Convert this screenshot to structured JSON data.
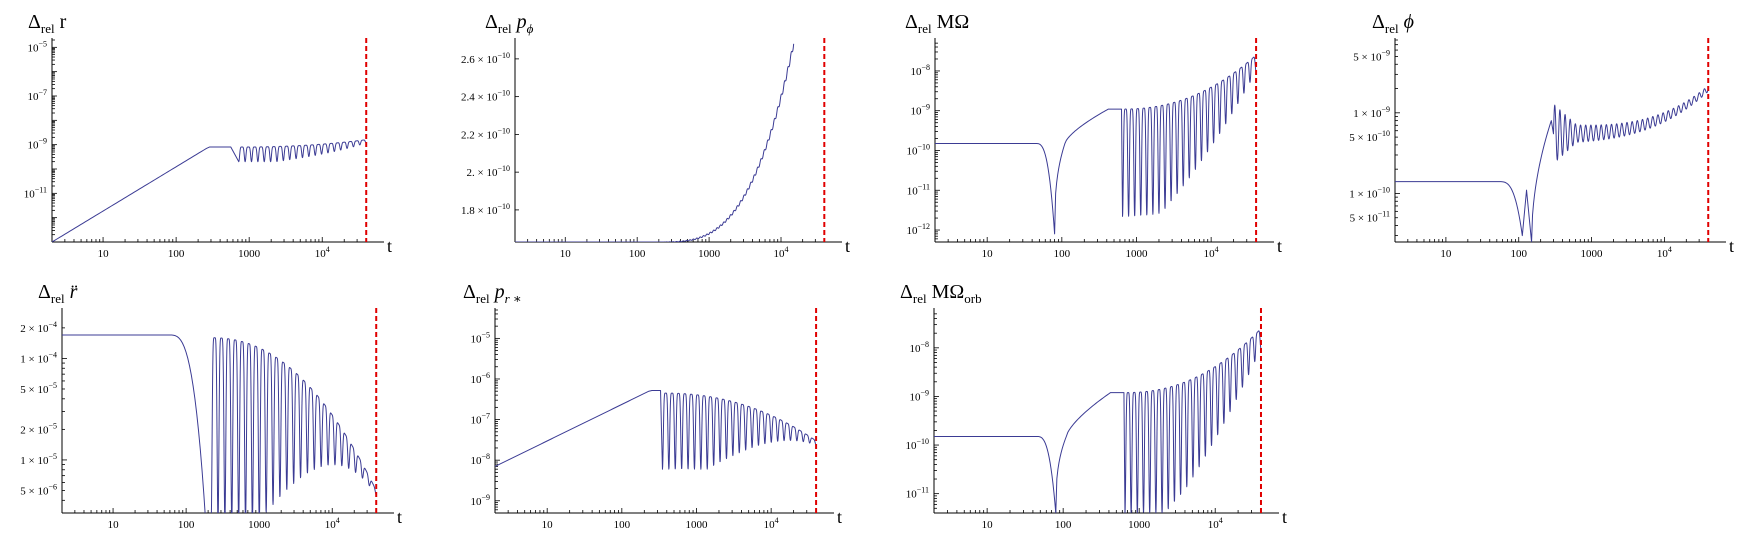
{
  "chart_data": [
    {
      "type": "line",
      "title": {
        "pre": "Δ",
        "sub": "rel",
        "post": " r",
        "italic": false
      },
      "xlabel": "t",
      "xscale": "log",
      "yscale": "log",
      "xlim": [
        2,
        48000
      ],
      "ylim": [
        1e-13,
        2e-05
      ],
      "xticks": [
        {
          "label": "10",
          "value": 10
        },
        {
          "label": "100",
          "value": 100
        },
        {
          "label": "1000",
          "value": 1000
        },
        {
          "label": "10",
          "sup": "4",
          "value": 10000
        }
      ],
      "yticks": [
        {
          "base": "10",
          "sup": "−5",
          "value": 1e-05
        },
        {
          "base": "10",
          "sup": "−7",
          "value": 1e-07
        },
        {
          "base": "10",
          "sup": "−9",
          "value": 1e-09
        },
        {
          "base": "10",
          "sup": "−11",
          "value": 1e-11
        }
      ],
      "vline": 40000,
      "series": [
        {
          "model": "rise",
          "start": [
            2,
            1e-13
          ],
          "end": [
            260,
            7e-10
          ],
          "plateau": 8e-10,
          "plateau_end": 560,
          "osc_start": 720,
          "osc_peak": 8e-10,
          "osc_dip": 2e-10,
          "osc_end_value": 1.6e-09,
          "osc_end": 40000,
          "dip_exp": 1.0,
          "periods": 20
        }
      ],
      "colors": {
        "line": "#3b3b94",
        "marker": "#e00000"
      }
    },
    {
      "type": "line",
      "title": {
        "pre": "Δ",
        "sub": "rel",
        "post": " p",
        "post_sub": "ϕ",
        "italic": true
      },
      "xlabel": "t",
      "xscale": "log",
      "yscale": "linear",
      "xlim": [
        2,
        48000
      ],
      "ylim": [
        1.63e-10,
        2.7e-10
      ],
      "xticks": [
        {
          "label": "10",
          "value": 10
        },
        {
          "label": "100",
          "value": 100
        },
        {
          "label": "1000",
          "value": 1000
        },
        {
          "label": "10",
          "sup": "4",
          "value": 10000
        }
      ],
      "yticks": [
        {
          "base": "2.6 × 10",
          "sup": "−10",
          "value": 2.6e-10
        },
        {
          "base": "2.4 × 10",
          "sup": "−10",
          "value": 2.4e-10
        },
        {
          "base": "2.2 × 10",
          "sup": "−10",
          "value": 2.2e-10
        },
        {
          "base": "2. × 10",
          "sup": "−10",
          "value": 2e-10
        },
        {
          "base": "1.8 × 10",
          "sup": "−10",
          "value": 1.8e-10
        }
      ],
      "vline": 40000,
      "series": [
        {
          "model": "growth",
          "start": [
            2,
            1.63e-10
          ],
          "flat_end": 200,
          "end": [
            15000,
            2.68e-10
          ],
          "power": 3.2,
          "wiggle": 0.006,
          "periods": 40
        }
      ],
      "colors": {
        "line": "#3b3b94",
        "marker": "#e00000"
      }
    },
    {
      "type": "line",
      "title": {
        "pre": "Δ",
        "sub": "rel",
        "post": " MΩ",
        "italic": false
      },
      "xlabel": "t",
      "xscale": "log",
      "yscale": "log",
      "xlim": [
        2,
        48000
      ],
      "ylim": [
        5e-13,
        6e-08
      ],
      "xticks": [
        {
          "label": "10",
          "value": 10
        },
        {
          "label": "100",
          "value": 100
        },
        {
          "label": "1000",
          "value": 1000
        },
        {
          "label": "10",
          "sup": "4",
          "value": 10000
        }
      ],
      "yticks": [
        {
          "base": "10",
          "sup": "−8",
          "value": 1e-08
        },
        {
          "base": "10",
          "sup": "−9",
          "value": 1e-09
        },
        {
          "base": "10",
          "sup": "−10",
          "value": 1e-10
        },
        {
          "base": "10",
          "sup": "−11",
          "value": 1e-11
        },
        {
          "base": "10",
          "sup": "−12",
          "value": 1e-12
        }
      ],
      "vline": 40000,
      "series": [
        {
          "model": "dip",
          "flat": 1.5e-10,
          "flat_end": 45,
          "dip_t": 80,
          "dip_value": 8e-13,
          "recover": [
            110,
            1.5e-10
          ],
          "plateau": 1.1e-09,
          "plateau_start": 420,
          "plateau_end": 630,
          "osc_start": 650,
          "osc_peak": 1.1e-09,
          "osc_dip": 2e-12,
          "osc_end_value": 2.5e-08,
          "osc_end": 40000,
          "dip_exp": 1.0,
          "periods": 22
        }
      ],
      "colors": {
        "line": "#3b3b94",
        "marker": "#e00000"
      }
    },
    {
      "type": "line",
      "title": {
        "pre": "Δ",
        "sub": "rel",
        "post": " ϕ",
        "italic": true
      },
      "xlabel": "t",
      "xscale": "log",
      "yscale": "log",
      "xlim": [
        2,
        48000
      ],
      "ylim": [
        2.5e-11,
        8e-09
      ],
      "xticks": [
        {
          "label": "10",
          "value": 10
        },
        {
          "label": "100",
          "value": 100
        },
        {
          "label": "1000",
          "value": 1000
        },
        {
          "label": "10",
          "sup": "4",
          "value": 10000
        }
      ],
      "yticks": [
        {
          "base": "5 × 10",
          "sup": "−9",
          "value": 5e-09
        },
        {
          "base": "1 × 10",
          "sup": "−9",
          "value": 1e-09
        },
        {
          "base": "5 × 10",
          "sup": "−10",
          "value": 5e-10
        },
        {
          "base": "1 × 10",
          "sup": "−10",
          "value": 1e-10
        },
        {
          "base": "5 × 10",
          "sup": "−11",
          "value": 5e-11
        }
      ],
      "vline": 40000,
      "series": [
        {
          "model": "phi",
          "flat": 1.4e-10,
          "flat_end": 55,
          "dip1_t": 112,
          "dip1_value": 3e-11,
          "bump": [
            128,
            1.1e-10
          ],
          "dip2_t": 150,
          "dip2_value": 2.5e-11,
          "rise_peak": [
            280,
            8e-10
          ],
          "osc_start": 300,
          "osc_mid": 5.5e-10,
          "osc_amp": 0.12,
          "osc_end_value": 2e-09,
          "osc_end": 40000,
          "periods": 30
        }
      ],
      "colors": {
        "line": "#3b3b94",
        "marker": "#e00000"
      }
    },
    {
      "type": "line",
      "title": {
        "pre": "Δ",
        "sub": "rel",
        "post": " r̈",
        "italic": true
      },
      "xlabel": "t",
      "xscale": "log",
      "yscale": "log",
      "xlim": [
        2,
        48000
      ],
      "ylim": [
        3e-06,
        0.0003
      ],
      "xticks": [
        {
          "label": "10",
          "value": 10
        },
        {
          "label": "100",
          "value": 100
        },
        {
          "label": "1000",
          "value": 1000
        },
        {
          "label": "10",
          "sup": "4",
          "value": 10000
        }
      ],
      "yticks": [
        {
          "base": "2 × 10",
          "sup": "−4",
          "value": 0.0002
        },
        {
          "base": "1 × 10",
          "sup": "−4",
          "value": 0.0001
        },
        {
          "base": "5 × 10",
          "sup": "−5",
          "value": 5e-05
        },
        {
          "base": "2 × 10",
          "sup": "−5",
          "value": 2e-05
        },
        {
          "base": "1 × 10",
          "sup": "−5",
          "value": 1e-05
        },
        {
          "base": "5 × 10",
          "sup": "−6",
          "value": 5e-06
        }
      ],
      "vline": 40000,
      "series": [
        {
          "model": "rdd",
          "flat": 0.00017,
          "flat_end": 60,
          "dip_t": 185,
          "dip_value": 2.5e-06,
          "osc_start": 220,
          "osc_peak": 0.00016,
          "osc_dip": 2.5e-06,
          "osc_end_value": 5e-06,
          "osc_end": 40000,
          "periods": 24
        }
      ],
      "colors": {
        "line": "#3b3b94",
        "marker": "#e00000"
      }
    },
    {
      "type": "line",
      "title": {
        "pre": "Δ",
        "sub": "rel",
        "post": " p",
        "post_sub": "r ∗",
        "italic": true
      },
      "xlabel": "t",
      "xscale": "log",
      "yscale": "log",
      "xlim": [
        2,
        48000
      ],
      "ylim": [
        5e-10,
        5e-05
      ],
      "xticks": [
        {
          "label": "10",
          "value": 10
        },
        {
          "label": "100",
          "value": 100
        },
        {
          "label": "1000",
          "value": 1000
        },
        {
          "label": "10",
          "sup": "4",
          "value": 10000
        }
      ],
      "yticks": [
        {
          "base": "10",
          "sup": "−5",
          "value": 1e-05
        },
        {
          "base": "10",
          "sup": "−6",
          "value": 1e-06
        },
        {
          "base": "10",
          "sup": "−7",
          "value": 1e-07
        },
        {
          "base": "10",
          "sup": "−8",
          "value": 1e-08
        },
        {
          "base": "10",
          "sup": "−9",
          "value": 1e-09
        }
      ],
      "vline": 40000,
      "series": [
        {
          "model": "rise",
          "start": [
            2,
            7e-09
          ],
          "end": [
            230,
            5e-07
          ],
          "plateau": 5.2e-07,
          "plateau_end": 330,
          "osc_start": 350,
          "osc_peak": 4.5e-07,
          "osc_dip": 6e-09,
          "osc_end_value": 3e-08,
          "osc_end": 40000,
          "dip_exp": 1.0,
          "periods": 24
        }
      ],
      "colors": {
        "line": "#3b3b94",
        "marker": "#e00000"
      }
    },
    {
      "type": "line",
      "title": {
        "pre": "Δ",
        "sub": "rel",
        "post": " MΩ",
        "post_sub": "orb",
        "italic": false
      },
      "xlabel": "t",
      "xscale": "log",
      "yscale": "log",
      "xlim": [
        2,
        48000
      ],
      "ylim": [
        4e-12,
        6e-08
      ],
      "xticks": [
        {
          "label": "10",
          "value": 10
        },
        {
          "label": "100",
          "value": 100
        },
        {
          "label": "1000",
          "value": 1000
        },
        {
          "label": "10",
          "sup": "4",
          "value": 10000
        }
      ],
      "yticks": [
        {
          "base": "10",
          "sup": "−8",
          "value": 1e-08
        },
        {
          "base": "10",
          "sup": "−9",
          "value": 1e-09
        },
        {
          "base": "10",
          "sup": "−10",
          "value": 1e-10
        },
        {
          "base": "10",
          "sup": "−11",
          "value": 1e-11
        }
      ],
      "vline": 40000,
      "series": [
        {
          "model": "dip",
          "flat": 1.5e-10,
          "flat_end": 45,
          "dip_t": 80,
          "dip_value": 4e-12,
          "recover": [
            110,
            1.5e-10
          ],
          "plateau": 1.2e-09,
          "plateau_start": 420,
          "plateau_end": 630,
          "osc_start": 650,
          "osc_peak": 1.2e-09,
          "osc_dip": 4e-12,
          "osc_end_value": 2.5e-08,
          "osc_end": 40000,
          "dip_exp": 1.0,
          "periods": 22
        }
      ],
      "colors": {
        "line": "#3b3b94",
        "marker": "#e00000"
      }
    }
  ]
}
